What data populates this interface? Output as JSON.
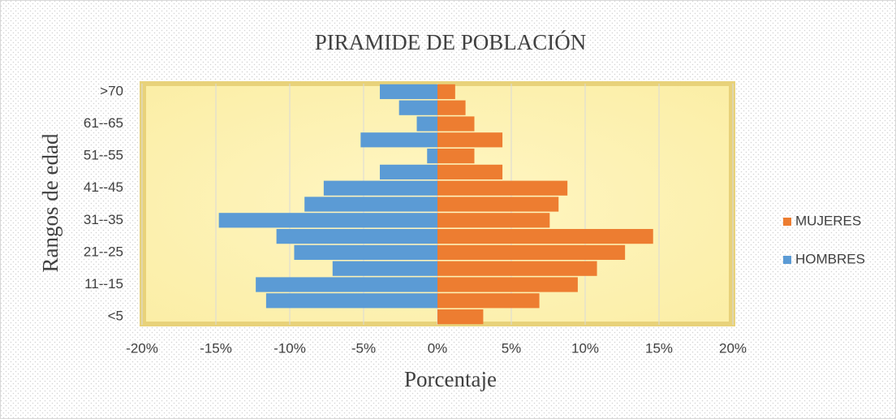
{
  "chart_data": {
    "type": "bar",
    "orientation": "horizontal",
    "stacked": "overlap",
    "title": "PIRAMIDE DE POBLACIÓN",
    "x_label": "Porcentaje",
    "y_label": "Rangos de edad",
    "categories": [
      "<5",
      null,
      "11--15",
      null,
      "21--25",
      null,
      "31--35",
      null,
      "41--45",
      null,
      "51--55",
      null,
      "61--65",
      null,
      ">70"
    ],
    "series": [
      {
        "name": "MUJERES",
        "color": "#ed7d31",
        "values": [
          3.1,
          6.9,
          9.5,
          10.8,
          12.7,
          14.6,
          7.6,
          8.2,
          8.8,
          4.4,
          2.5,
          4.4,
          2.5,
          1.9,
          1.2
        ]
      },
      {
        "name": "HOMBRES",
        "color": "#5b9bd5",
        "values": [
          0,
          -11.6,
          -12.3,
          -7.1,
          -9.7,
          -10.9,
          -14.8,
          -9.0,
          -7.7,
          -3.9,
          -0.7,
          -5.2,
          -1.4,
          -2.6,
          -3.9
        ]
      }
    ],
    "xlim": [
      -20,
      20
    ],
    "xticks": [
      {
        "value": -20,
        "label": "-20%"
      },
      {
        "value": -15,
        "label": "-15%"
      },
      {
        "value": -10,
        "label": "-10%"
      },
      {
        "value": -5,
        "label": "-5%"
      },
      {
        "value": 0,
        "label": "0%"
      },
      {
        "value": 5,
        "label": "5%"
      },
      {
        "value": 10,
        "label": "10%"
      },
      {
        "value": 15,
        "label": "15%"
      },
      {
        "value": 20,
        "label": "20%"
      }
    ],
    "grid": true,
    "legend": "right"
  }
}
